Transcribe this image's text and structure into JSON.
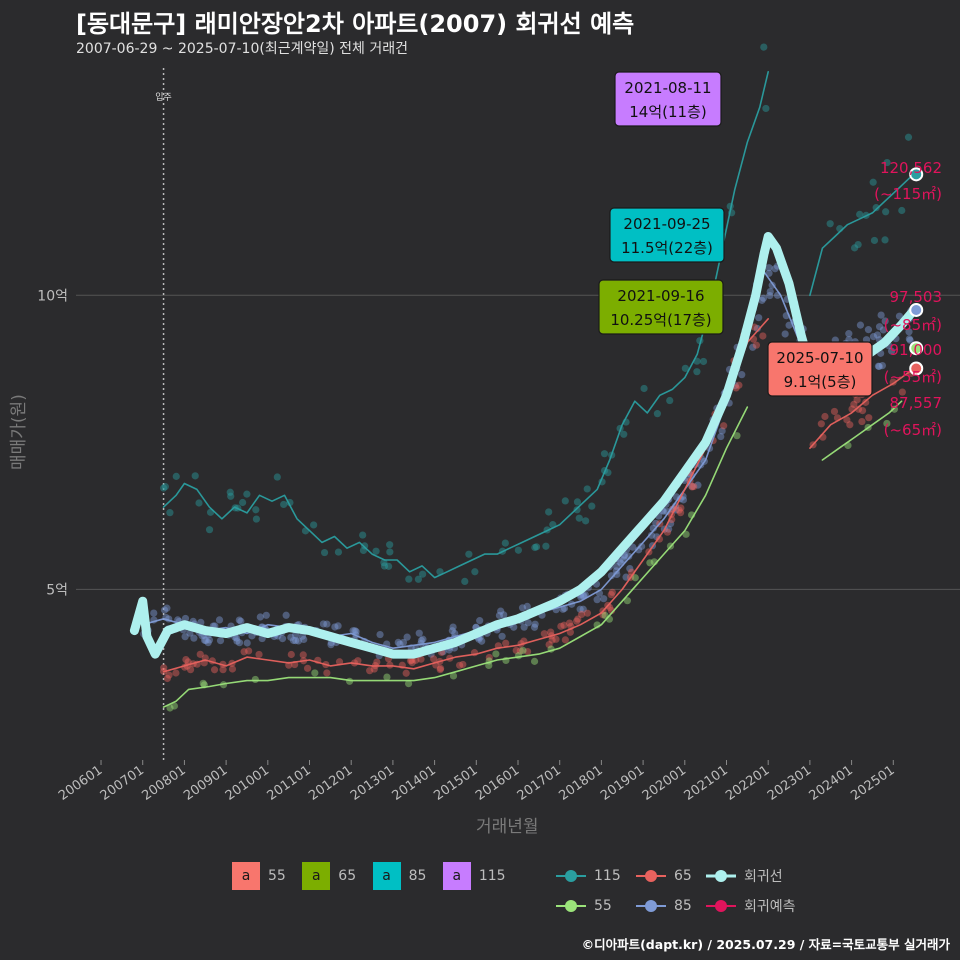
{
  "header": {
    "title": "[동대문구] 래미안장안2차 아파트(2007) 회귀선 예측",
    "subtitle": "2007-06-29 ~ 2025-07-10(최근계약일) 전체 거래건",
    "caption": "©디아파트(dapt.kr) / 2025.07.29 / 자료=국토교통부 실거래가"
  },
  "colors": {
    "background": "#2b2b2d",
    "size55": "#9be37a",
    "size65": "#e8625e",
    "size85": "#7f9bd6",
    "size115": "#2a9ea0",
    "regression": "#aef0ee",
    "forecast": "#e0145c",
    "label55": "#f8766d",
    "label65": "#7cae00",
    "label85": "#00bfc4",
    "label115": "#c77cff"
  },
  "chart_data": {
    "type": "scatter",
    "title": "[동대문구] 래미안장안2차 아파트(2007) 회귀선 예측",
    "xlabel": "거래년월",
    "ylabel": "매매가(원)",
    "x_ticks": [
      "200601",
      "200701",
      "200801",
      "200901",
      "201001",
      "201101",
      "201201",
      "201301",
      "201401",
      "201501",
      "201601",
      "201701",
      "201801",
      "201901",
      "202001",
      "202101",
      "202201",
      "202301",
      "202401",
      "202501"
    ],
    "y_ticks": [
      {
        "value": 50000,
        "label": "5억"
      },
      {
        "value": 100000,
        "label": "10억"
      }
    ],
    "xlim": [
      2005.4,
      2026.6
    ],
    "ylim": [
      21000,
      140000
    ],
    "vline": {
      "x": 2007.5,
      "label": "입주"
    },
    "series": [
      {
        "name": "115",
        "key": "size115",
        "x": [
          2007.5,
          2007.8,
          2008.0,
          2008.3,
          2008.6,
          2008.9,
          2009.2,
          2009.5,
          2009.8,
          2010.1,
          2010.4,
          2010.7,
          2011.0,
          2011.3,
          2011.6,
          2011.9,
          2012.2,
          2012.5,
          2012.8,
          2013.1,
          2013.4,
          2013.7,
          2014.0,
          2014.3,
          2014.6,
          2014.9,
          2015.2,
          2015.5,
          2015.8,
          2016.1,
          2016.4,
          2016.7,
          2017.0,
          2017.3,
          2017.6,
          2017.9,
          2018.2,
          2018.5,
          2018.8,
          2019.1,
          2019.4,
          2019.7,
          2020.0,
          2020.3,
          2020.6,
          2020.9,
          2021.2,
          2021.5,
          2021.8,
          2022.0
        ],
        "y": [
          64000,
          66000,
          68000,
          67000,
          64000,
          62000,
          64000,
          63000,
          66000,
          65000,
          66000,
          62000,
          60000,
          58000,
          59000,
          57000,
          58000,
          56000,
          55000,
          55000,
          53000,
          54000,
          52000,
          53000,
          54000,
          55000,
          56000,
          56000,
          57000,
          58000,
          59000,
          60000,
          61000,
          63000,
          65000,
          67000,
          72000,
          78000,
          82000,
          80000,
          83000,
          84000,
          86000,
          90000,
          98000,
          108000,
          118000,
          126000,
          132000,
          138000
        ]
      },
      {
        "name": "115",
        "key": "size115",
        "x": [
          2023.0,
          2023.3,
          2023.6,
          2023.9,
          2024.2,
          2024.5,
          2024.8,
          2025.1,
          2025.4
        ],
        "y": [
          100000,
          108000,
          110000,
          112000,
          113000,
          114000,
          116000,
          118000,
          120000
        ]
      },
      {
        "name": "85",
        "key": "size85",
        "x": [
          2007.0,
          2007.5,
          2008.0,
          2008.5,
          2009.0,
          2009.5,
          2010.0,
          2010.5,
          2011.0,
          2011.5,
          2012.0,
          2012.5,
          2013.0,
          2013.5,
          2014.0,
          2014.5,
          2015.0,
          2015.5,
          2016.0,
          2016.5,
          2017.0,
          2017.5,
          2018.0,
          2018.5,
          2019.0,
          2019.5,
          2020.0,
          2020.5,
          2021.0,
          2021.5,
          2021.9,
          2022.3,
          2022.7,
          2023.0,
          2023.5,
          2024.0,
          2024.5,
          2025.0,
          2025.5
        ],
        "y": [
          44000,
          45000,
          44000,
          43000,
          43500,
          42500,
          44000,
          43500,
          43000,
          42000,
          42500,
          41000,
          40000,
          40500,
          41000,
          42000,
          43000,
          44000,
          45000,
          46000,
          47000,
          48000,
          50000,
          54000,
          58000,
          62000,
          67000,
          72000,
          82000,
          92000,
          104000,
          100000,
          93000,
          88000,
          88000,
          90000,
          91000,
          94000,
          97500
        ]
      },
      {
        "name": "65",
        "key": "size65",
        "x": [
          2007.5,
          2008.0,
          2008.5,
          2009.0,
          2009.5,
          2010.0,
          2010.5,
          2011.0,
          2011.5,
          2012.0,
          2012.5,
          2013.0,
          2013.5,
          2014.0,
          2014.5,
          2015.0,
          2015.5,
          2016.0,
          2016.5,
          2017.0,
          2017.5,
          2018.0,
          2018.5,
          2019.0,
          2019.5,
          2020.0,
          2020.5,
          2021.0,
          2021.5,
          2022.0
        ],
        "y": [
          36000,
          37000,
          38000,
          37000,
          38500,
          38000,
          37500,
          38000,
          37000,
          37500,
          37000,
          37000,
          36500,
          37500,
          38500,
          39000,
          40000,
          40500,
          41500,
          42500,
          44000,
          46000,
          50000,
          55000,
          60000,
          67000,
          74000,
          82000,
          92000,
          96000
        ]
      },
      {
        "name": "65",
        "key": "size65",
        "x": [
          2023.0,
          2023.5,
          2024.0,
          2024.5,
          2025.0,
          2025.5
        ],
        "y": [
          74000,
          78000,
          80000,
          83000,
          85000,
          87557
        ]
      },
      {
        "name": "55",
        "key": "size55",
        "x": [
          2007.5,
          2007.8,
          2008.1,
          2008.6,
          2009.0,
          2009.5,
          2010.0,
          2010.5,
          2011.0,
          2011.5,
          2012.0,
          2012.5,
          2013.0,
          2013.5,
          2014.0,
          2014.5,
          2015.0,
          2015.5,
          2016.0,
          2016.5,
          2017.0,
          2017.5,
          2018.0,
          2018.5,
          2019.0,
          2019.5,
          2020.0,
          2020.5,
          2021.0,
          2021.5
        ],
        "y": [
          30000,
          31000,
          33000,
          33500,
          34000,
          34500,
          34500,
          35000,
          35000,
          35000,
          34500,
          34500,
          34500,
          34500,
          35000,
          36000,
          37000,
          38000,
          38500,
          39000,
          40000,
          42000,
          44000,
          48000,
          52000,
          56000,
          60000,
          66000,
          74000,
          81000
        ]
      },
      {
        "name": "55",
        "key": "size55",
        "x": [
          2023.3,
          2023.7,
          2024.1,
          2024.5,
          2024.9,
          2025.2
        ],
        "y": [
          72000,
          74000,
          76000,
          78000,
          80000,
          82000
        ]
      },
      {
        "name": "회귀선",
        "key": "regression",
        "x": [
          2006.8,
          2007.0,
          2007.1,
          2007.3,
          2007.6,
          2008.0,
          2008.5,
          2009.0,
          2009.5,
          2010.0,
          2010.5,
          2011.0,
          2011.5,
          2012.0,
          2012.5,
          2013.0,
          2013.5,
          2014.0,
          2014.5,
          2015.0,
          2015.5,
          2016.0,
          2016.5,
          2017.0,
          2017.5,
          2018.0,
          2018.5,
          2019.0,
          2019.5,
          2020.0,
          2020.5,
          2021.0,
          2021.4,
          2021.7,
          2021.9,
          2022.0,
          2022.2,
          2022.5,
          2022.8,
          2023.0,
          2023.3,
          2023.6,
          2024.0,
          2024.4,
          2024.8,
          2025.2,
          2025.5
        ],
        "y": [
          43000,
          48000,
          42000,
          39000,
          43000,
          44000,
          43000,
          42500,
          43500,
          42500,
          43500,
          43000,
          42000,
          41000,
          40000,
          39000,
          39000,
          40000,
          41000,
          42500,
          44000,
          45000,
          46500,
          48000,
          50000,
          53000,
          57000,
          61000,
          65000,
          70000,
          75000,
          83000,
          92000,
          100000,
          107000,
          110000,
          108000,
          102000,
          93000,
          88000,
          87000,
          88000,
          89000,
          90000,
          92000,
          95000,
          97500
        ]
      }
    ],
    "forecast_points": [
      {
        "name": "115",
        "x": 2025.55,
        "y": 120562,
        "value": "120,562",
        "area": "(~115㎡)"
      },
      {
        "name": "85",
        "x": 2025.55,
        "y": 97503,
        "value": "97,503",
        "area": "(~85㎡)"
      },
      {
        "name": "55",
        "x": 2025.55,
        "y": 91000,
        "value": "91,000",
        "area": "(~55㎡)"
      },
      {
        "name": "65",
        "x": 2025.55,
        "y": 87557,
        "value": "87,557",
        "area": "(~65㎡)"
      }
    ],
    "annotations": [
      {
        "date": "2021-08-11",
        "price": "14억(11층)",
        "color_key": "label115",
        "x": 2021.6,
        "y": 140000
      },
      {
        "date": "2021-09-25",
        "price": "11.5억(22층)",
        "color_key": "label85",
        "x": 2021.7,
        "y": 115000
      },
      {
        "date": "2021-09-16",
        "price": "10.25억(17층)",
        "color_key": "label65",
        "x": 2021.7,
        "y": 102500
      },
      {
        "date": "2025-07-10",
        "price": "9.1억(5층)",
        "color_key": "label55",
        "x": 2025.5,
        "y": 91000
      }
    ]
  },
  "legend": {
    "size_title_char": "a",
    "sizes": [
      {
        "label": "55",
        "color_key": "label55"
      },
      {
        "label": "65",
        "color_key": "label65"
      },
      {
        "label": "85",
        "color_key": "label85"
      },
      {
        "label": "115",
        "color_key": "label115"
      }
    ],
    "lines": [
      {
        "label": "115",
        "color_key": "size115"
      },
      {
        "label": "65",
        "color_key": "size65"
      },
      {
        "label": "회귀선",
        "color_key": "regression"
      },
      {
        "label": "55",
        "color_key": "size55"
      },
      {
        "label": "85",
        "color_key": "size85"
      },
      {
        "label": "회귀예측",
        "color_key": "forecast"
      }
    ]
  }
}
